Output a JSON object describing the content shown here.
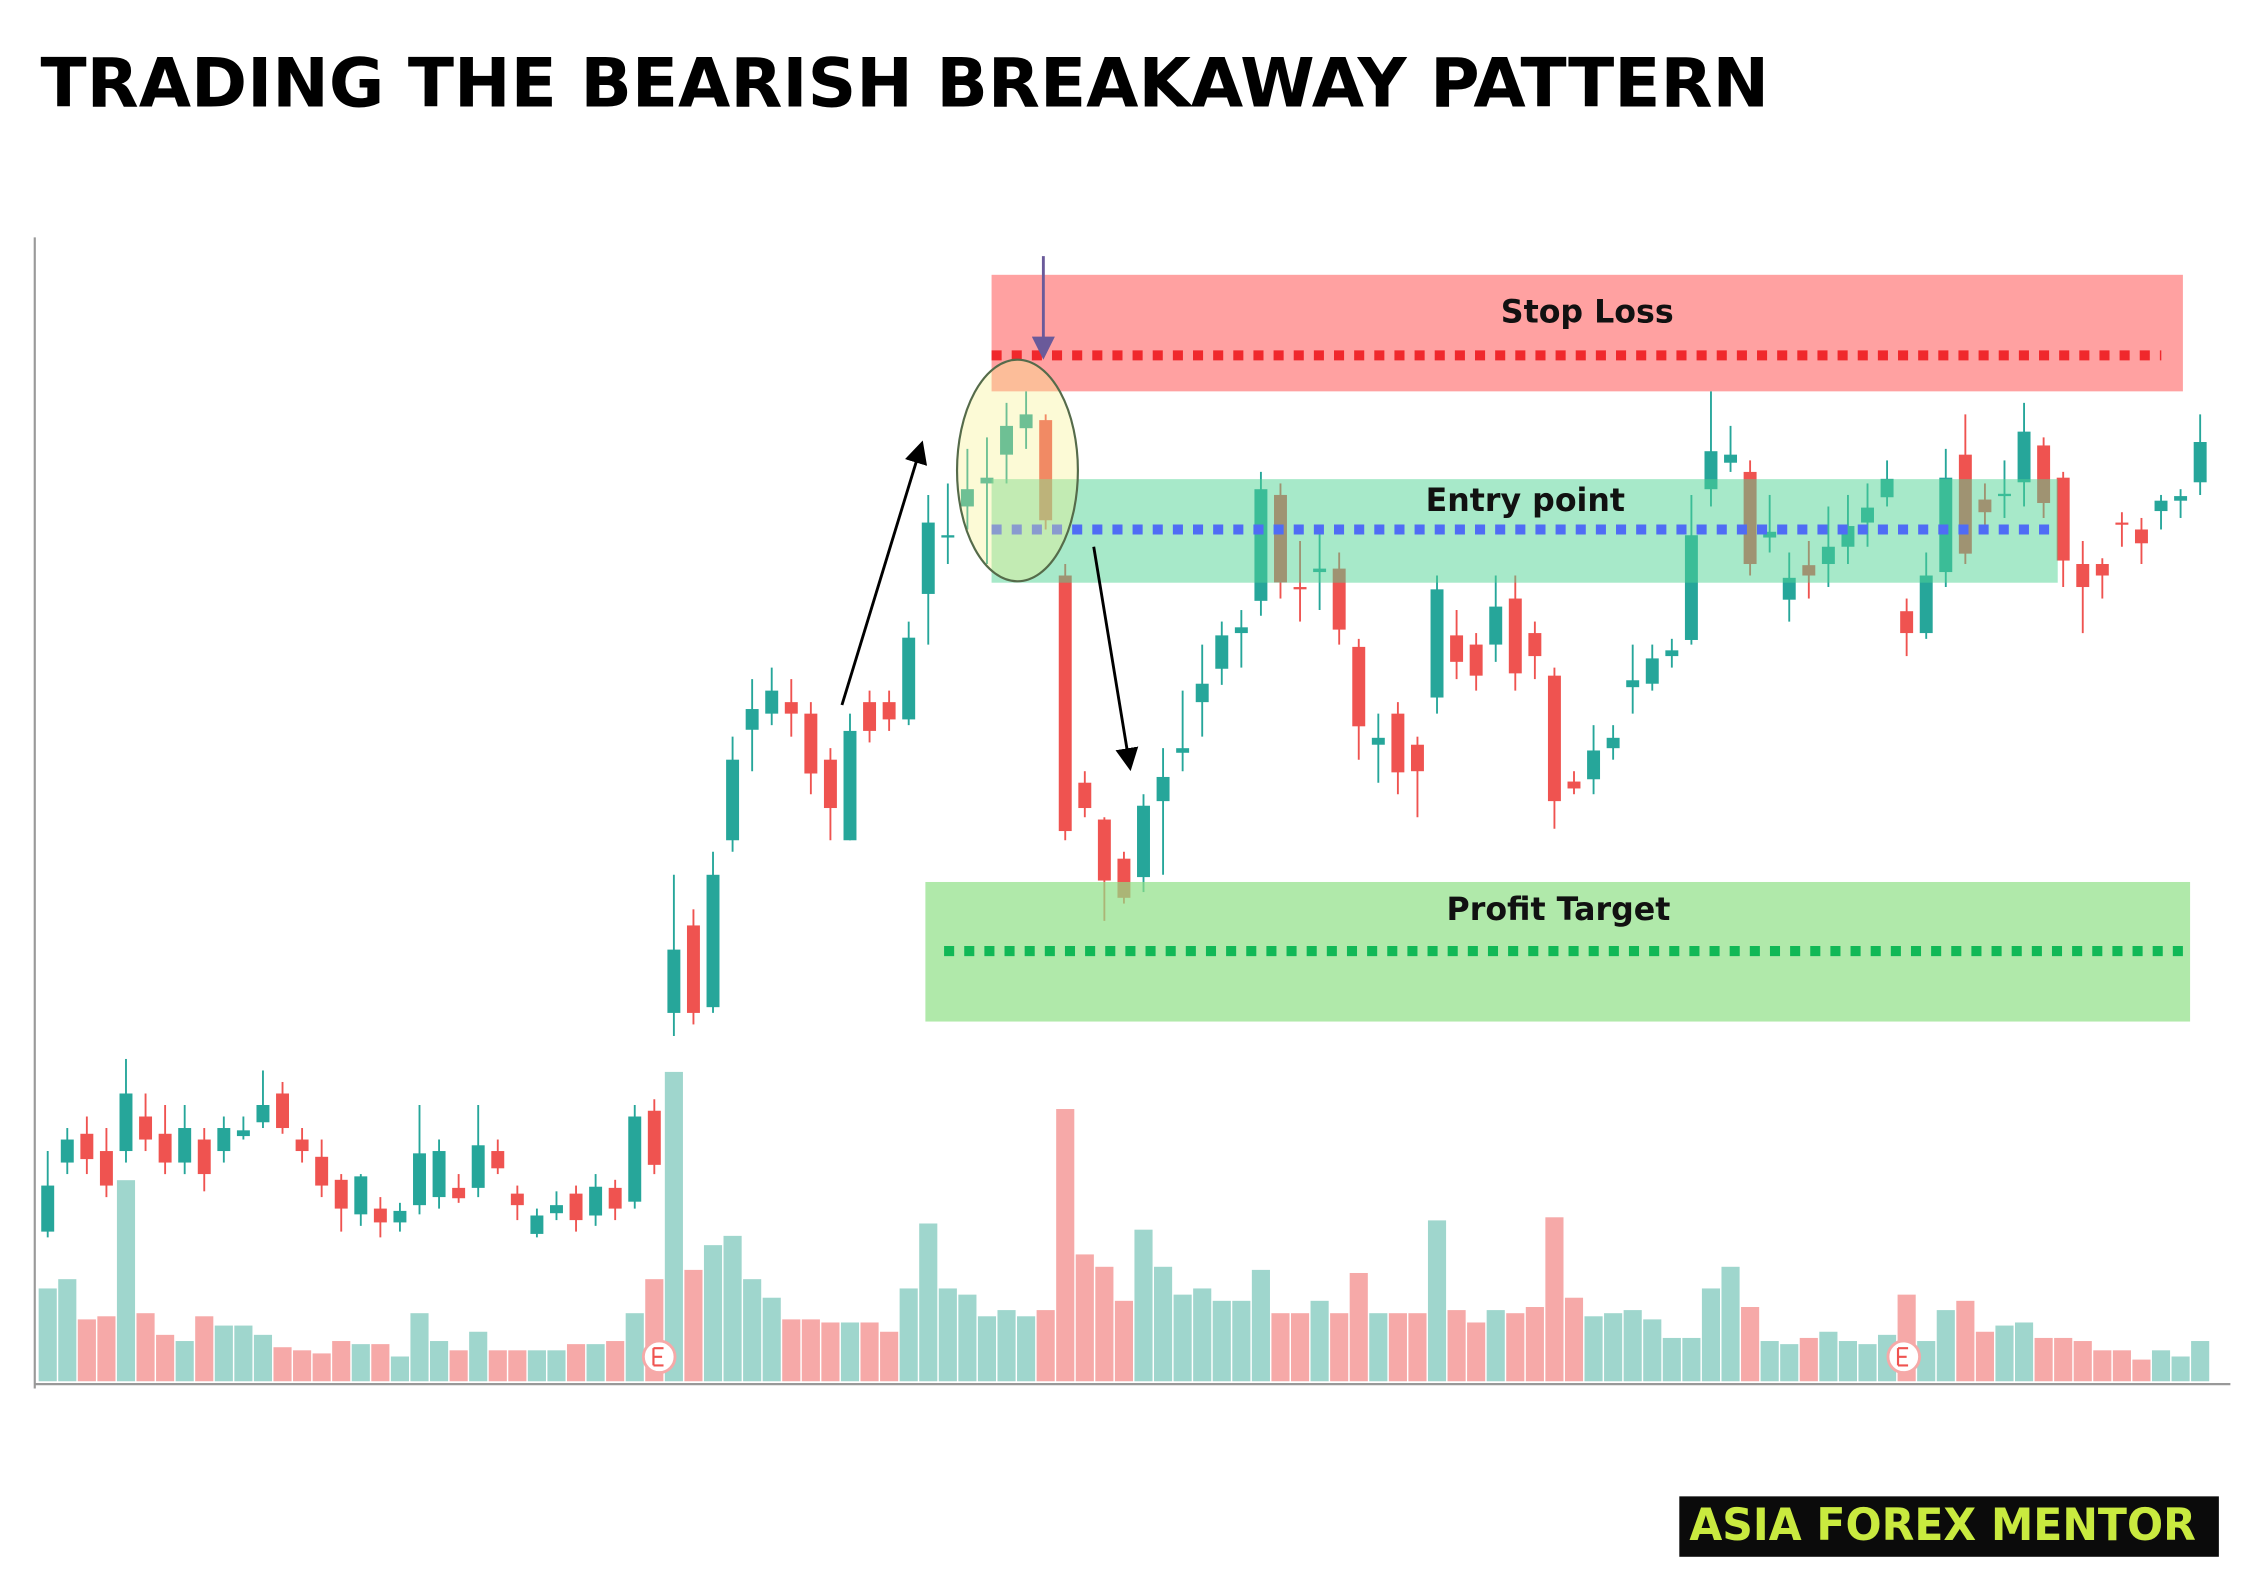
{
  "chart_data": {
    "type": "candlestick",
    "title": "TRADING THE BEARISH BREAKAWAY PATTERN",
    "open": [
      13,
      19,
      21.5,
      20,
      20,
      23,
      21.5,
      19,
      21,
      20,
      21.3,
      22.5,
      25,
      21,
      19.5,
      17.5,
      14.5,
      15,
      13.8,
      15.3,
      16,
      16.8,
      16.8,
      20,
      16.3,
      12.8,
      14.6,
      16.3,
      14.4,
      16.8,
      15.6,
      23.5,
      32,
      39.6,
      32.5,
      47,
      56.6,
      58,
      59,
      58,
      54,
      47,
      59,
      59,
      57.5,
      68.4,
      73.3,
      76,
      78,
      80.5,
      82.8,
      83.5,
      70,
      52,
      48.8,
      45.4,
      43.8,
      50.4,
      54.6,
      59,
      61.9,
      65,
      67.8,
      77,
      69,
      70.3,
      70.6,
      63.8,
      55.3,
      58,
      55.3,
      59.4,
      64.8,
      64,
      64,
      68,
      65,
      61.3,
      52.1,
      52.3,
      55,
      60.3,
      60.6,
      63,
      64.4,
      77.5,
      79.8,
      79,
      73.3,
      67.9,
      70.9,
      71,
      72.5,
      74.6,
      76.8,
      66.9,
      65,
      70.3,
      80.5,
      76.6,
      76.9,
      78.1,
      81.3,
      78.5,
      71,
      71,
      74.6,
      74,
      75.6,
      76.5,
      78.1
    ],
    "high": [
      20,
      22,
      23,
      22,
      28,
      25,
      24,
      24,
      22,
      23,
      23,
      27,
      26,
      22,
      21,
      18,
      18,
      16,
      15.5,
      24,
      21,
      18,
      24,
      21,
      17,
      15,
      16.5,
      17,
      18,
      17.5,
      24,
      24.5,
      44,
      41,
      46,
      56,
      61,
      62,
      61,
      59,
      55,
      58,
      60,
      60,
      66,
      77,
      78,
      81,
      82,
      85,
      86,
      84,
      71,
      53,
      49,
      46,
      51,
      55,
      60,
      64,
      66,
      67,
      79,
      78,
      73,
      74,
      72,
      64.5,
      58,
      59,
      56,
      70,
      67,
      65,
      70,
      70,
      66,
      62,
      53,
      57,
      57,
      64,
      64,
      64.5,
      77,
      86,
      83,
      80,
      77,
      72,
      73,
      76,
      77,
      78,
      80,
      68,
      72,
      81,
      84,
      78,
      80,
      85,
      82,
      79,
      73,
      71.5,
      75.5,
      75,
      77,
      77.5,
      84
    ],
    "low": [
      12.5,
      18,
      18,
      16,
      19,
      20,
      18,
      18,
      16.5,
      19,
      21,
      22,
      21.5,
      19,
      16,
      13,
      13.5,
      12.5,
      13,
      14.5,
      15,
      15.5,
      16,
      18,
      14,
      12.5,
      14,
      13,
      13.5,
      14,
      15,
      18,
      30,
      31,
      32,
      46,
      53,
      57,
      56,
      51,
      47,
      47,
      55.5,
      56.5,
      57,
      64,
      71,
      74,
      71,
      78,
      81,
      74,
      47,
      49,
      40,
      41.5,
      42.5,
      44,
      53,
      56,
      60.5,
      62,
      66.5,
      68,
      66,
      67,
      64,
      54,
      52,
      51,
      49,
      58,
      61,
      60,
      62.5,
      60,
      61,
      48,
      51,
      51,
      54,
      58,
      60,
      62,
      64,
      76,
      79,
      70,
      72,
      66,
      68,
      69,
      71,
      72.5,
      76,
      63,
      64.5,
      69,
      71,
      74,
      75,
      76,
      75,
      69,
      65,
      68,
      72.5,
      71,
      74,
      75,
      77
    ],
    "close": [
      17,
      21,
      19.3,
      17,
      25,
      21,
      19,
      22,
      18,
      22,
      21.8,
      24,
      22,
      20,
      17,
      15,
      17.8,
      13.8,
      14.8,
      19.8,
      20,
      15.9,
      20.5,
      18.5,
      15.3,
      14.4,
      15.3,
      14,
      16.9,
      15,
      23,
      18.8,
      37.5,
      32,
      44,
      54,
      58.4,
      60,
      58,
      52.8,
      49.8,
      56.5,
      56.5,
      57.5,
      64.6,
      74.6,
      73.5,
      77.5,
      78.5,
      83,
      84,
      74.8,
      47.8,
      49.8,
      43.5,
      42,
      50,
      52.5,
      55,
      60.6,
      64.8,
      65.5,
      77.5,
      69.4,
      68.8,
      70.6,
      65.3,
      56.9,
      55.9,
      52.9,
      53,
      68.8,
      62.5,
      61.3,
      67.3,
      61.5,
      63,
      50.4,
      51.5,
      54.8,
      55.9,
      60.9,
      62.8,
      63.5,
      73.5,
      80.8,
      80.5,
      71,
      73.8,
      69.8,
      70,
      72.5,
      74.3,
      75.9,
      78.4,
      65,
      70,
      78.5,
      71.9,
      75.5,
      77.1,
      82.5,
      76.3,
      71.3,
      69,
      70,
      74.5,
      72.8,
      76.5,
      76.9,
      81.6
    ],
    "volume": [
      30,
      33,
      20,
      21,
      65,
      22,
      15,
      13,
      21,
      18,
      18,
      15,
      11,
      10,
      9,
      13,
      12,
      12,
      8,
      22,
      13,
      10,
      16,
      10,
      10,
      10,
      10,
      12,
      12,
      13,
      22,
      33,
      100,
      36,
      44,
      47,
      33,
      27,
      20,
      20,
      19,
      19,
      19,
      16,
      30,
      51,
      30,
      28,
      21,
      23,
      21,
      23,
      88,
      41,
      37,
      26,
      49,
      37,
      28,
      30,
      26,
      26,
      36,
      22,
      22,
      26,
      22,
      35,
      22,
      22,
      22,
      52,
      23,
      19,
      23,
      22,
      24,
      53,
      27,
      21,
      22,
      23,
      20,
      14,
      14,
      30,
      37,
      24,
      13,
      12,
      14,
      16,
      13,
      12,
      15,
      28,
      13,
      23,
      26,
      16,
      18,
      19,
      14,
      14,
      13,
      10,
      10,
      7,
      10,
      8,
      13
    ],
    "ylim": [
      0,
      100
    ],
    "volume_ylim": [
      0,
      100
    ],
    "up_color": "#26a69a",
    "down_color": "#ef5350",
    "volume_up_color": "#9fd6cd",
    "volume_down_color": "#f6a9a8",
    "annotations": {
      "stop_loss": "Stop Loss",
      "entry": "Entry point",
      "profit_target": "Profit Target"
    }
  },
  "branding": "ASIA FOREX MENTOR"
}
